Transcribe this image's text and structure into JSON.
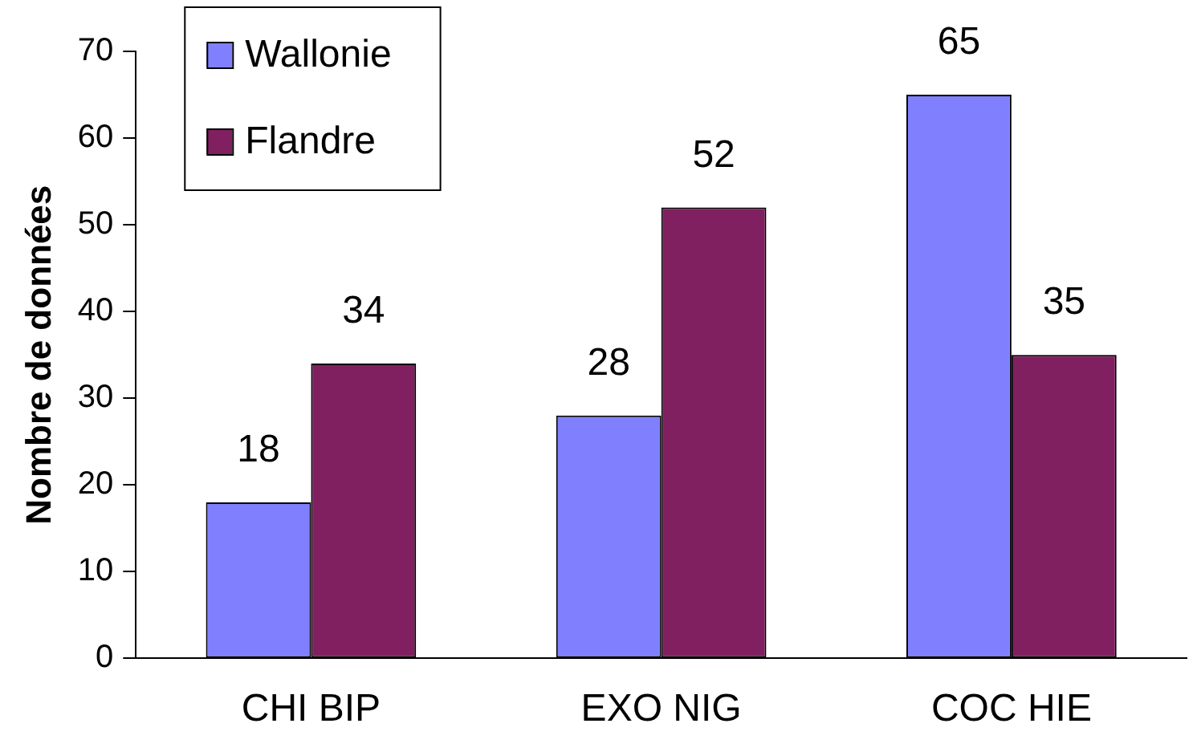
{
  "chart_data": {
    "type": "bar",
    "ylabel": "Nombre de données",
    "categories": [
      "CHI BIP",
      "EXO NIG",
      "COC HIE"
    ],
    "series": [
      {
        "name": "Wallonie",
        "color": "#8080ff",
        "values": [
          18,
          28,
          65
        ]
      },
      {
        "name": "Flandre",
        "color": "#802060",
        "values": [
          34,
          52,
          35
        ]
      }
    ],
    "ylim": [
      0,
      70
    ],
    "yticks": [
      0,
      10,
      20,
      30,
      40,
      50,
      60,
      70
    ],
    "grid": false,
    "legend": "top left",
    "data_labels": true
  }
}
